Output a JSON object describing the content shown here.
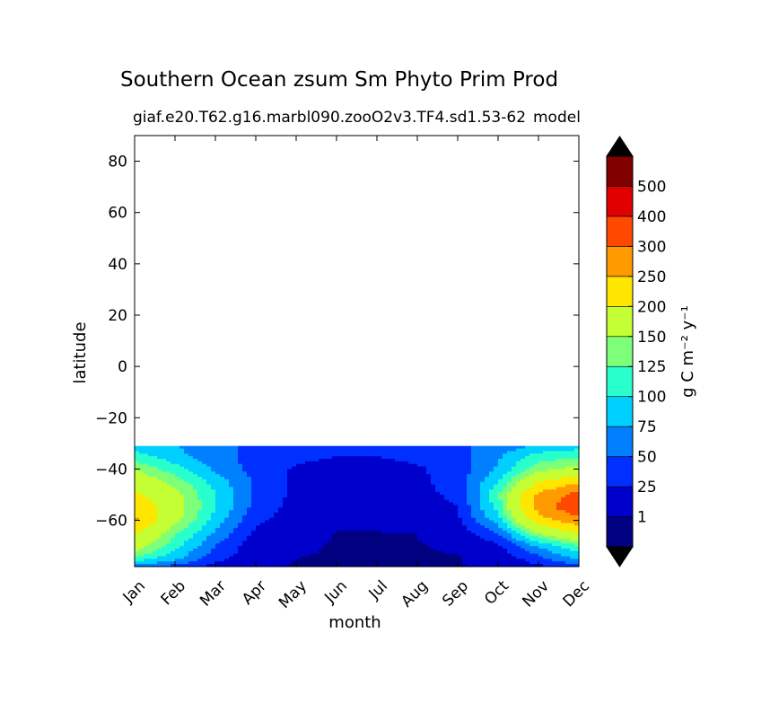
{
  "chart_data": {
    "type": "heatmap",
    "title": "Southern Ocean zsum Sm Phyto Prim Prod",
    "subtitle": "giaf.e20.T62.g16.marbl090.zooO2v3.TF4.sd1.53-62",
    "subtitle_right": "model",
    "xlabel": "month",
    "ylabel": "latitude",
    "x_categories": [
      "Jan",
      "Feb",
      "Mar",
      "Apr",
      "May",
      "Jun",
      "Jul",
      "Aug",
      "Sep",
      "Oct",
      "Nov",
      "Dec"
    ],
    "y_ticks": [
      80,
      60,
      40,
      20,
      0,
      -20,
      -40,
      -60
    ],
    "y_tick_labels": [
      "80",
      "60",
      "40",
      "20",
      "0",
      "−20",
      "−40",
      "−60"
    ],
    "ylim": [
      -78,
      90
    ],
    "data_lat_range": [
      -78,
      -31
    ],
    "colorbar": {
      "label": "g C m⁻² y⁻¹",
      "levels": [
        1,
        25,
        50,
        75,
        100,
        125,
        150,
        200,
        250,
        300,
        400,
        500
      ],
      "level_labels": [
        "1",
        "25",
        "50",
        "75",
        "100",
        "125",
        "150",
        "200",
        "250",
        "300",
        "400",
        "500"
      ],
      "colors": [
        "#000080",
        "#0000cd",
        "#0030ff",
        "#0080ff",
        "#00d0ff",
        "#29ffcc",
        "#7dff7a",
        "#c4ff33",
        "#ffe600",
        "#ff9a00",
        "#ff4800",
        "#e00000",
        "#800000"
      ],
      "under_color": "#000000",
      "over_color": "#000000"
    },
    "latitudes": [
      -31,
      -35,
      -40,
      -45,
      -50,
      -55,
      -60,
      -65,
      -70,
      -75,
      -78
    ],
    "months": [
      1,
      2,
      3,
      4,
      5,
      6,
      7,
      8,
      9,
      10,
      11,
      12
    ],
    "values": [
      [
        90,
        75,
        55,
        45,
        40,
        38,
        38,
        40,
        45,
        60,
        80,
        90
      ],
      [
        110,
        85,
        60,
        40,
        30,
        25,
        25,
        30,
        40,
        70,
        110,
        120
      ],
      [
        150,
        110,
        70,
        40,
        22,
        18,
        18,
        22,
        35,
        80,
        140,
        160
      ],
      [
        180,
        140,
        90,
        45,
        20,
        15,
        15,
        20,
        35,
        100,
        200,
        240
      ],
      [
        210,
        160,
        100,
        45,
        18,
        12,
        12,
        18,
        30,
        120,
        260,
        320
      ],
      [
        240,
        170,
        100,
        40,
        15,
        10,
        10,
        15,
        25,
        110,
        270,
        340
      ],
      [
        260,
        160,
        90,
        30,
        12,
        5,
        5,
        8,
        20,
        90,
        230,
        280
      ],
      [
        200,
        130,
        70,
        20,
        5,
        0.5,
        0.5,
        1,
        10,
        50,
        150,
        200
      ],
      [
        170,
        110,
        50,
        10,
        2,
        0.5,
        0.5,
        0.5,
        2,
        20,
        80,
        120
      ],
      [
        120,
        80,
        35,
        5,
        1,
        0.5,
        0.5,
        0.5,
        0.5,
        5,
        40,
        80
      ],
      [
        60,
        40,
        15,
        2,
        0.5,
        0,
        0,
        0,
        0.5,
        3,
        20,
        40
      ]
    ]
  }
}
